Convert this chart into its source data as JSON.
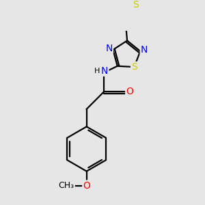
{
  "background_color": "#e6e6e6",
  "bond_color": "#000000",
  "bond_width": 1.6,
  "atom_colors": {
    "S": "#cccc00",
    "N": "#0000ff",
    "O": "#ff0000",
    "C": "#000000",
    "H": "#000000"
  },
  "font_size": 10
}
